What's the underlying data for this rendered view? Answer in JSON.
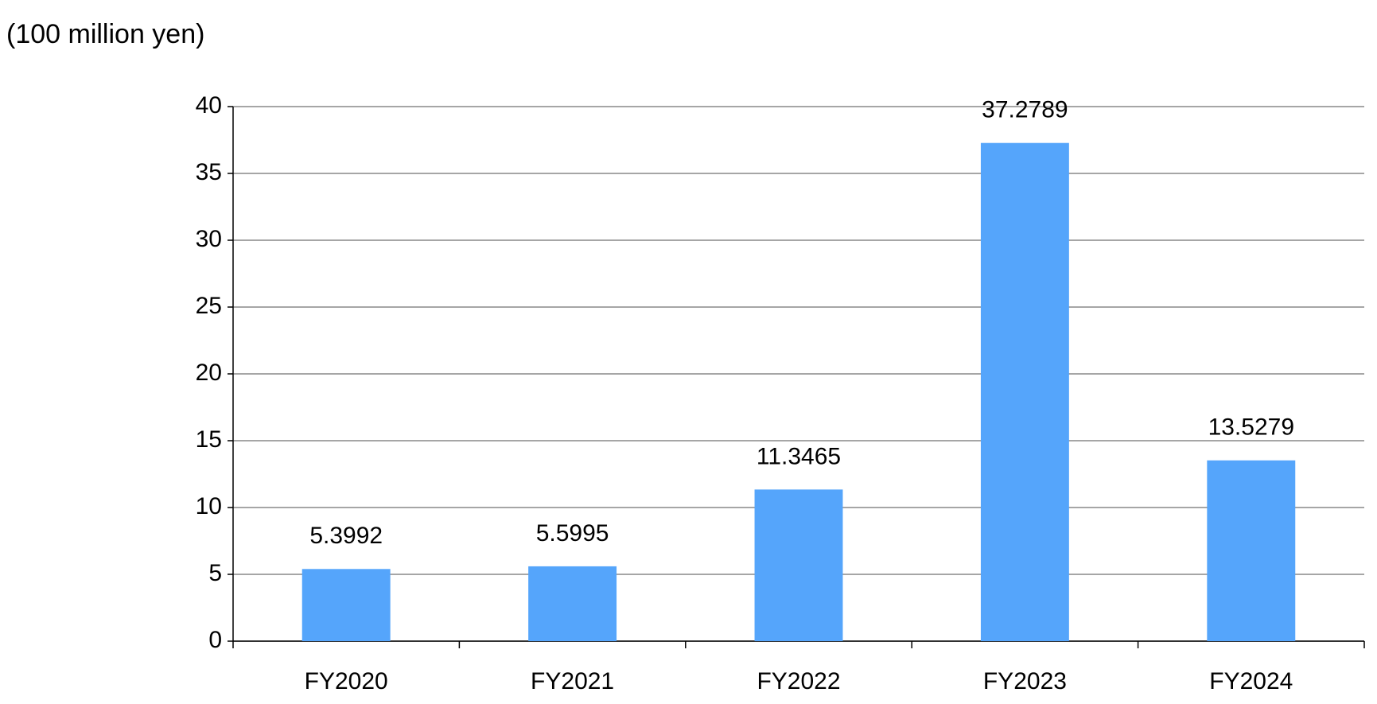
{
  "chart_data": {
    "type": "bar",
    "y_axis_label": "(100 million yen)",
    "categories": [
      "FY2020",
      "FY2021",
      "FY2022",
      "FY2023",
      "FY2024"
    ],
    "values": [
      5.3992,
      5.5995,
      11.3465,
      37.2789,
      13.5279
    ],
    "color": "#55a5fb",
    "ylim": [
      0,
      40
    ],
    "yticks": [
      0,
      5,
      10,
      15,
      20,
      25,
      30,
      35,
      40
    ],
    "grid": true
  }
}
